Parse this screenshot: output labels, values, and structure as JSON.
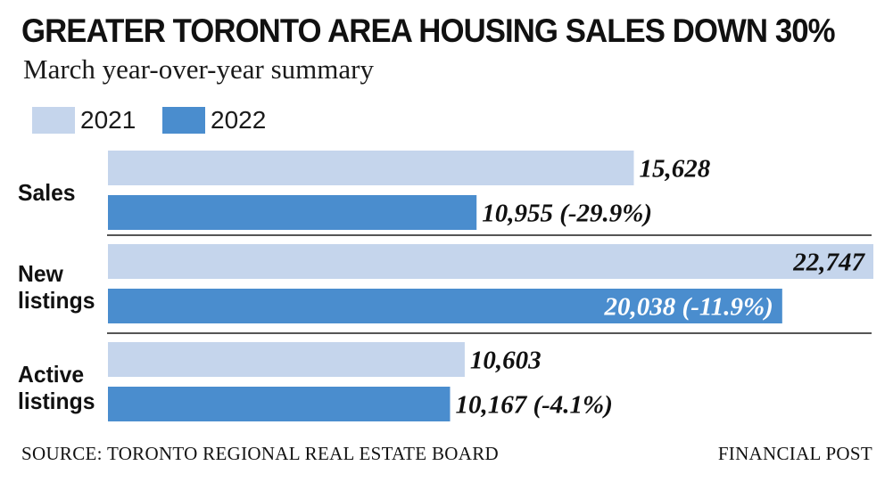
{
  "chart_data": {
    "type": "bar",
    "orientation": "horizontal",
    "title": "GREATER TORONTO AREA HOUSING SALES DOWN 30%",
    "subtitle": "March year-over-year summary",
    "categories": [
      "Sales",
      "New listings",
      "Active listings"
    ],
    "series": [
      {
        "name": "2021",
        "color": "#c5d5ec",
        "values": [
          15628,
          22747,
          10603
        ],
        "labels": [
          "15,628",
          "22,747",
          "10,603"
        ]
      },
      {
        "name": "2022",
        "color": "#4a8dce",
        "values": [
          10955,
          20038,
          10167
        ],
        "labels": [
          "10,955 (-29.9%)",
          "20,038 (-11.9%)",
          "10,167 (-4.1%)"
        ]
      }
    ],
    "xlim": [
      0,
      22747
    ],
    "grid": false,
    "legend": "top-left"
  },
  "category_lines": [
    [
      "Sales"
    ],
    [
      "New",
      "listings"
    ],
    [
      "Active",
      "listings"
    ]
  ],
  "source": "SOURCE: TORONTO REGIONAL REAL ESTATE BOARD",
  "credit": "FINANCIAL POST"
}
